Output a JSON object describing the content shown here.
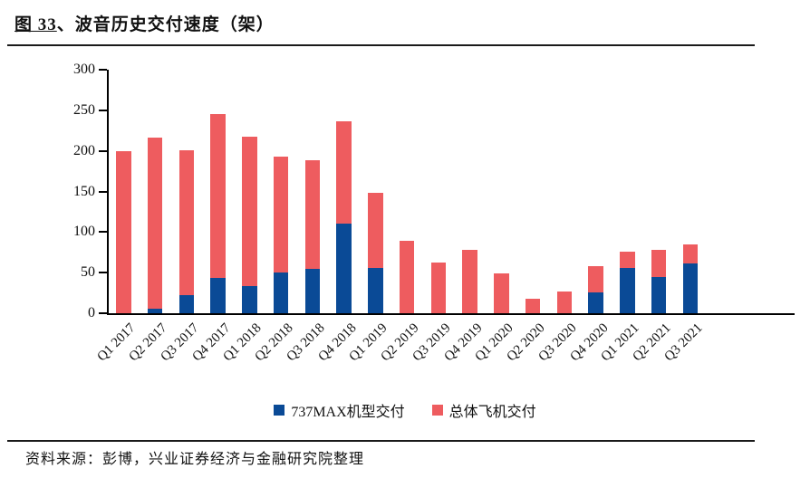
{
  "figure": {
    "title_prefix": "图 33",
    "title_rest": "、波音历史交付速度（架）"
  },
  "source": {
    "text": "资料来源：彭博，兴业证券经济与金融研究院整理"
  },
  "legend": {
    "items": [
      {
        "label": "737MAX机型交付",
        "color": "#0a4a96"
      },
      {
        "label": "总体飞机交付",
        "color": "#ee5c5f"
      }
    ]
  },
  "chart_data": {
    "type": "bar",
    "subtype": "overlay",
    "title": "波音历史交付速度（架）",
    "xlabel": "",
    "ylabel": "",
    "ylim": [
      0,
      300
    ],
    "yticks": [
      0,
      50,
      100,
      150,
      200,
      250,
      300
    ],
    "grid": false,
    "legend_position": "bottom",
    "categories": [
      "Q1 2017",
      "Q2 2017",
      "Q3 2017",
      "Q4 2017",
      "Q1 2018",
      "Q2 2018",
      "Q3 2018",
      "Q4 2018",
      "Q1 2019",
      "Q2 2019",
      "Q3 2019",
      "Q4 2019",
      "Q1 2020",
      "Q2 2020",
      "Q3 2020",
      "Q4 2020",
      "Q1 2021",
      "Q2 2021",
      "Q3 2021"
    ],
    "series": [
      {
        "name": "737MAX机型交付",
        "color": "#0a4a96",
        "values": [
          0,
          6,
          22,
          43,
          33,
          50,
          55,
          110,
          56,
          0,
          0,
          0,
          0,
          0,
          0,
          26,
          56,
          45,
          61
        ]
      },
      {
        "name": "总体飞机交付",
        "color": "#ee5c5f",
        "values": [
          200,
          216,
          201,
          245,
          218,
          193,
          189,
          237,
          148,
          89,
          62,
          78,
          49,
          18,
          27,
          58,
          76,
          78,
          85
        ]
      }
    ]
  }
}
